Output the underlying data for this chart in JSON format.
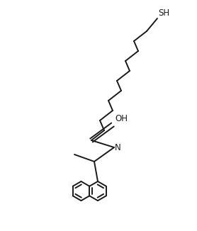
{
  "bg_color": "#ffffff",
  "line_color": "#1a1a1a",
  "line_width": 1.4,
  "font_size": 8.5,
  "sh_label": "SH",
  "oh_label": "OH",
  "n_label": "N"
}
